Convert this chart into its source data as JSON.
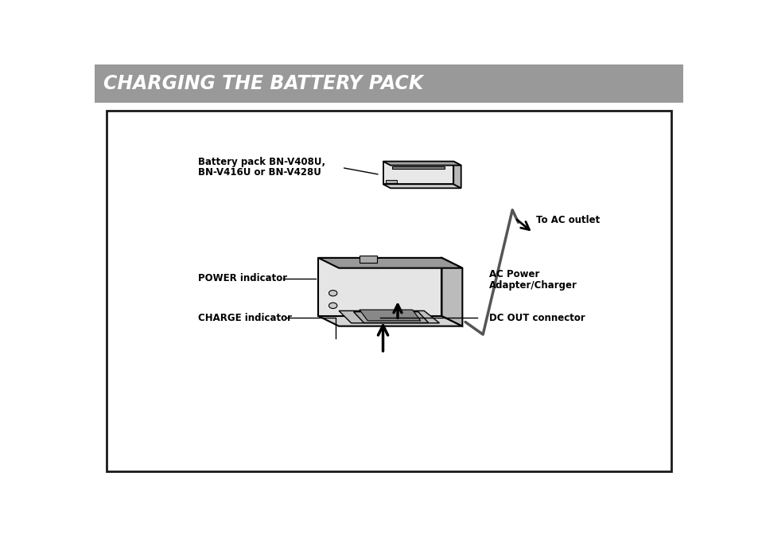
{
  "title": "CHARGING THE BATTERY PACK",
  "title_bg_color": "#999999",
  "title_text_color": "#ffffff",
  "page_bg_color": "#ffffff",
  "box_bg_color": "#ffffff",
  "box_border_color": "#1a1a1a",
  "labels": {
    "battery_pack_line1": "Battery pack BN-V408U,",
    "battery_pack_line2": "BN-V416U or BN-V428U",
    "to_ac_outlet": "To AC outlet",
    "ac_power_line1": "AC Power",
    "ac_power_line2": "Adapter/Charger",
    "power_indicator": "POWER indicator",
    "charge_indicator": "CHARGE indicator",
    "dc_out": "DC OUT connector"
  },
  "font_size_title": 17,
  "font_size_labels": 8.5
}
